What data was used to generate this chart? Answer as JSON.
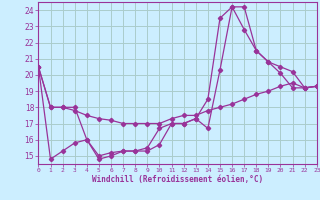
{
  "xlabel": "Windchill (Refroidissement éolien,°C)",
  "bg_color": "#cceeff",
  "grid_color": "#aacccc",
  "line_color": "#993399",
  "xmin": 0,
  "xmax": 23,
  "ymin": 14.5,
  "ymax": 24.5,
  "series1": [
    [
      0,
      20.5
    ],
    [
      1,
      18.0
    ],
    [
      2,
      18.0
    ],
    [
      3,
      17.8
    ],
    [
      4,
      17.5
    ],
    [
      5,
      17.3
    ],
    [
      6,
      17.2
    ],
    [
      7,
      17.0
    ],
    [
      8,
      17.0
    ],
    [
      9,
      17.0
    ],
    [
      10,
      17.0
    ],
    [
      11,
      17.3
    ],
    [
      12,
      17.5
    ],
    [
      13,
      17.5
    ],
    [
      14,
      17.8
    ],
    [
      15,
      18.0
    ],
    [
      16,
      18.2
    ],
    [
      17,
      18.5
    ],
    [
      18,
      18.8
    ],
    [
      19,
      19.0
    ],
    [
      20,
      19.3
    ],
    [
      21,
      19.5
    ],
    [
      22,
      19.2
    ],
    [
      23,
      19.3
    ]
  ],
  "series2": [
    [
      0,
      20.5
    ],
    [
      1,
      14.8
    ],
    [
      2,
      15.3
    ],
    [
      3,
      15.8
    ],
    [
      4,
      16.0
    ],
    [
      5,
      14.8
    ],
    [
      6,
      15.0
    ],
    [
      7,
      15.3
    ],
    [
      8,
      15.3
    ],
    [
      9,
      15.5
    ],
    [
      10,
      16.7
    ],
    [
      11,
      17.0
    ],
    [
      12,
      17.0
    ],
    [
      13,
      17.3
    ],
    [
      14,
      16.7
    ],
    [
      15,
      20.3
    ],
    [
      16,
      24.2
    ],
    [
      17,
      24.2
    ],
    [
      18,
      21.5
    ],
    [
      19,
      20.8
    ],
    [
      20,
      20.5
    ],
    [
      21,
      20.2
    ],
    [
      22,
      19.2
    ],
    [
      23,
      19.3
    ]
  ],
  "series3": [
    [
      0,
      20.5
    ],
    [
      1,
      18.0
    ],
    [
      2,
      18.0
    ],
    [
      3,
      18.0
    ],
    [
      4,
      16.0
    ],
    [
      5,
      15.0
    ],
    [
      6,
      15.2
    ],
    [
      7,
      15.3
    ],
    [
      8,
      15.3
    ],
    [
      9,
      15.3
    ],
    [
      10,
      15.7
    ],
    [
      11,
      17.0
    ],
    [
      12,
      17.0
    ],
    [
      13,
      17.3
    ],
    [
      14,
      18.5
    ],
    [
      15,
      23.5
    ],
    [
      16,
      24.2
    ],
    [
      17,
      22.8
    ],
    [
      18,
      21.5
    ],
    [
      19,
      20.8
    ],
    [
      20,
      20.1
    ],
    [
      21,
      19.2
    ],
    [
      22,
      19.2
    ],
    [
      23,
      19.3
    ]
  ],
  "yticks": [
    15,
    16,
    17,
    18,
    19,
    20,
    21,
    22,
    23,
    24
  ],
  "xticks": [
    0,
    1,
    2,
    3,
    4,
    5,
    6,
    7,
    8,
    9,
    10,
    11,
    12,
    13,
    14,
    15,
    16,
    17,
    18,
    19,
    20,
    21,
    22,
    23
  ]
}
